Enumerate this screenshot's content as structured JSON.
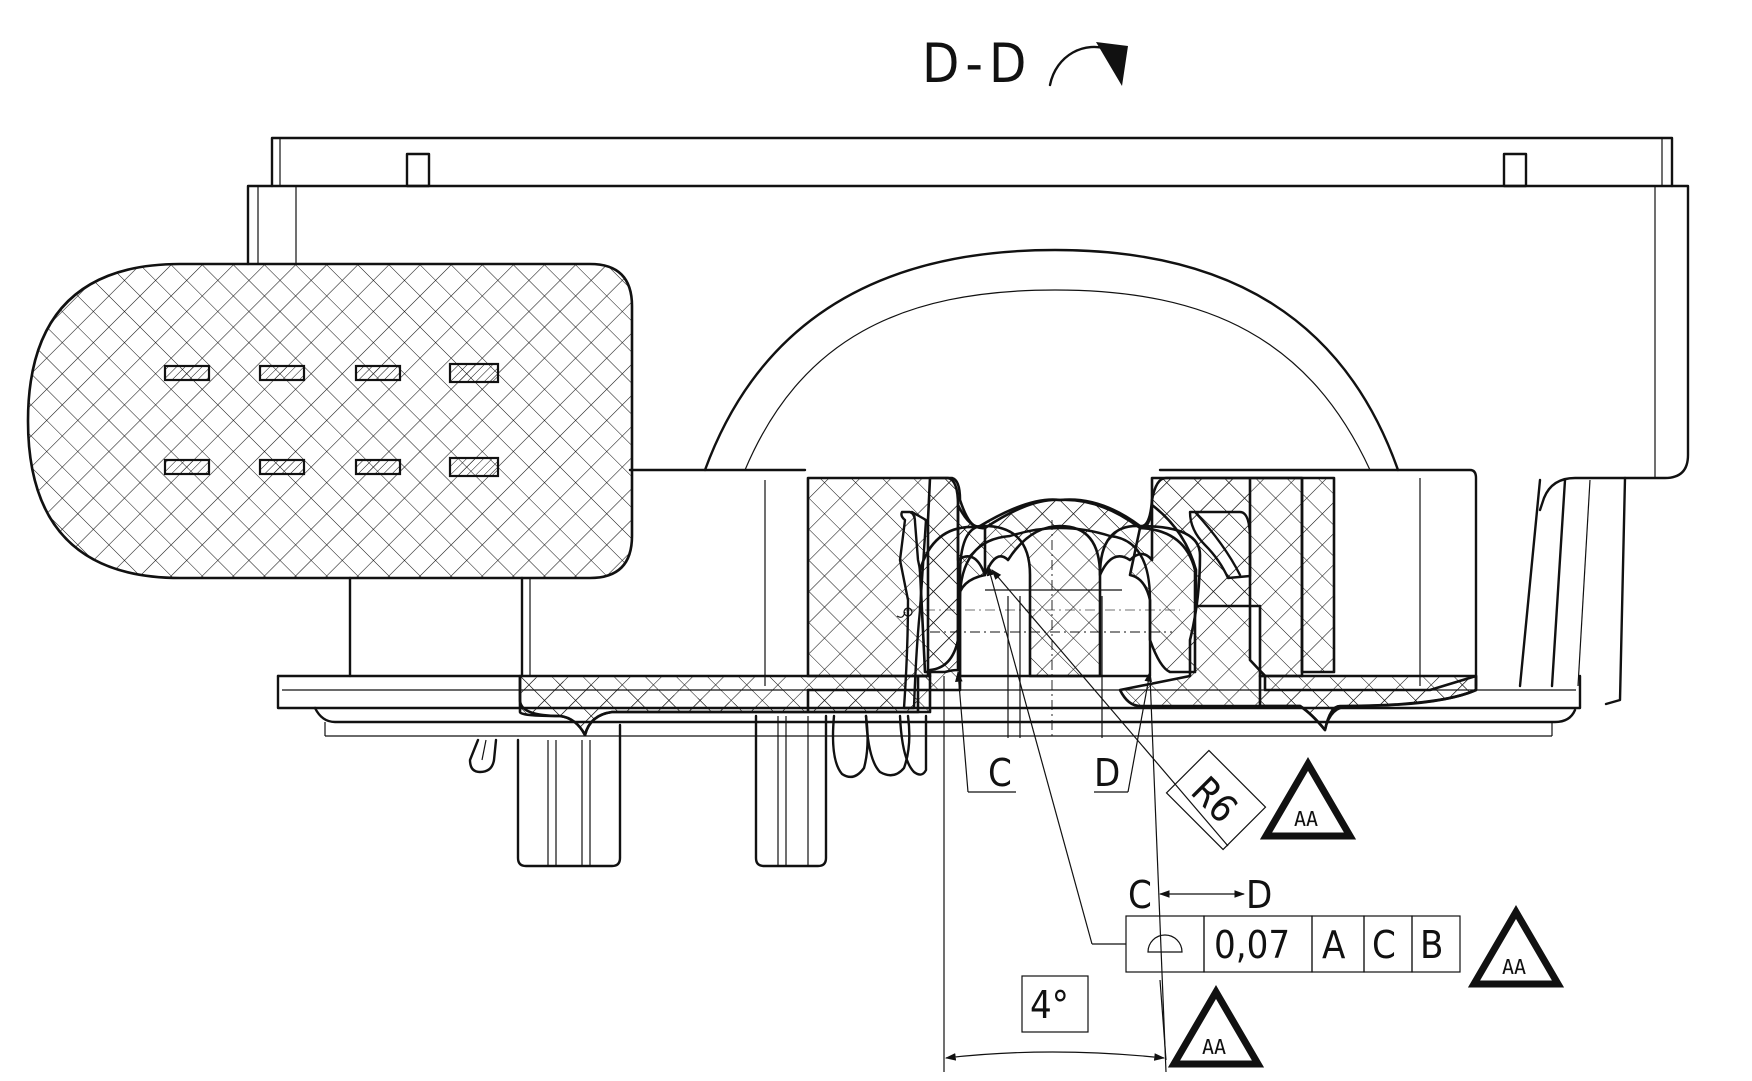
{
  "section_view": {
    "label": "D-D"
  },
  "callouts": {
    "radius": "R6",
    "angle": "4°",
    "left_edge": "C",
    "right_edge": "D",
    "between_from": "C",
    "between_to": "D"
  },
  "feature_control_frame": {
    "tolerance": "0,07",
    "datums": [
      "A",
      "C",
      "B"
    ]
  },
  "symbols": {
    "special_characteristic": "AA"
  }
}
